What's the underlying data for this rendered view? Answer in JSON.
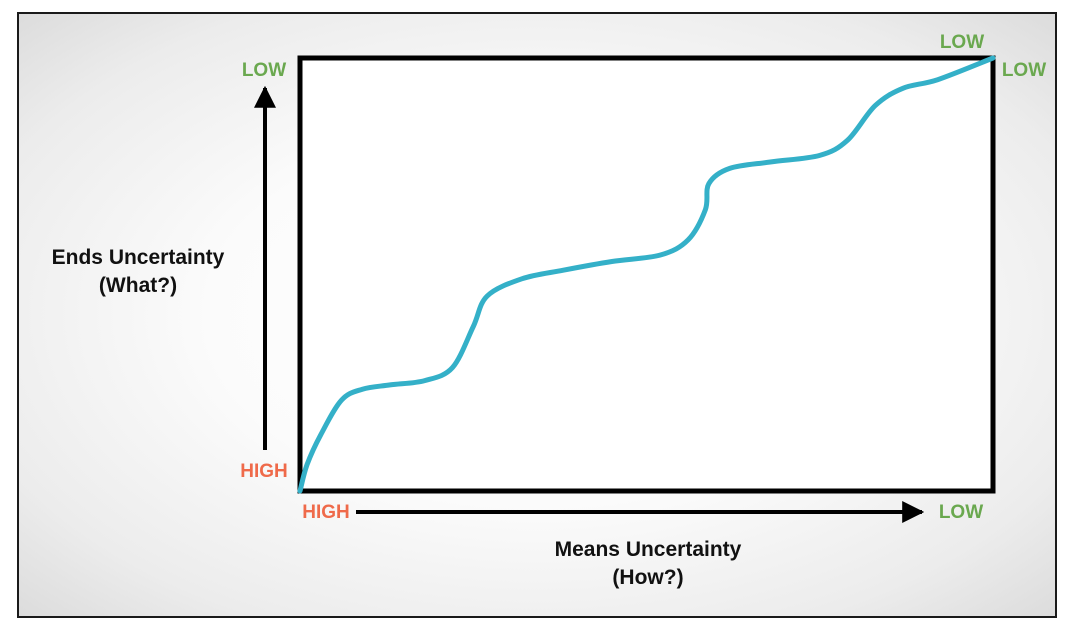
{
  "chart_data": {
    "type": "line",
    "title": "",
    "xlabel": [
      "Means Uncertainty",
      "(How?)"
    ],
    "ylabel": [
      "Ends Uncertainty",
      "(What?)"
    ],
    "x_axis": {
      "start_label": "HIGH",
      "end_label": "LOW"
    },
    "y_axis": {
      "start_label": "HIGH",
      "end_label": "LOW"
    },
    "corner_label": "LOW",
    "grid": false,
    "legend": "none",
    "series": [
      {
        "color": "#34b0c8",
        "points": [
          [
            0.0,
            0.0
          ],
          [
            0.01,
            0.06
          ],
          [
            0.03,
            0.13
          ],
          [
            0.06,
            0.21
          ],
          [
            0.09,
            0.235
          ],
          [
            0.13,
            0.245
          ],
          [
            0.18,
            0.255
          ],
          [
            0.22,
            0.285
          ],
          [
            0.25,
            0.38
          ],
          [
            0.27,
            0.45
          ],
          [
            0.32,
            0.49
          ],
          [
            0.38,
            0.51
          ],
          [
            0.45,
            0.53
          ],
          [
            0.52,
            0.545
          ],
          [
            0.56,
            0.58
          ],
          [
            0.585,
            0.65
          ],
          [
            0.59,
            0.71
          ],
          [
            0.62,
            0.745
          ],
          [
            0.68,
            0.76
          ],
          [
            0.75,
            0.775
          ],
          [
            0.79,
            0.81
          ],
          [
            0.83,
            0.89
          ],
          [
            0.87,
            0.93
          ],
          [
            0.92,
            0.95
          ],
          [
            1.0,
            1.0
          ]
        ]
      }
    ]
  }
}
